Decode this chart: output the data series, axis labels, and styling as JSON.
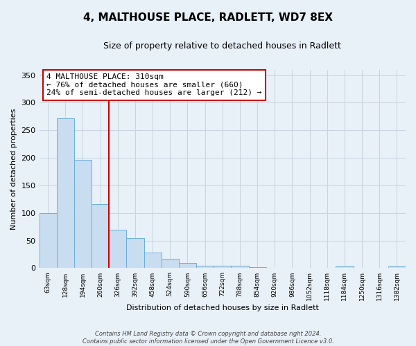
{
  "title": "4, MALTHOUSE PLACE, RADLETT, WD7 8EX",
  "subtitle": "Size of property relative to detached houses in Radlett",
  "xlabel": "Distribution of detached houses by size in Radlett",
  "ylabel": "Number of detached properties",
  "bin_labels": [
    "63sqm",
    "128sqm",
    "194sqm",
    "260sqm",
    "326sqm",
    "392sqm",
    "458sqm",
    "524sqm",
    "590sqm",
    "656sqm",
    "722sqm",
    "788sqm",
    "854sqm",
    "920sqm",
    "986sqm",
    "1052sqm",
    "1118sqm",
    "1184sqm",
    "1250sqm",
    "1316sqm",
    "1382sqm"
  ],
  "bar_heights": [
    100,
    271,
    196,
    116,
    69,
    54,
    28,
    17,
    9,
    4,
    4,
    4,
    2,
    0,
    0,
    0,
    0,
    3,
    1,
    1,
    3
  ],
  "bar_color": "#c9ddf0",
  "bar_edge_color": "#6baed6",
  "vline_x_index": 4,
  "vline_color": "#cc0000",
  "ylim": [
    0,
    360
  ],
  "yticks": [
    0,
    50,
    100,
    150,
    200,
    250,
    300,
    350
  ],
  "annotation_title": "4 MALTHOUSE PLACE: 310sqm",
  "annotation_line1": "← 76% of detached houses are smaller (660)",
  "annotation_line2": "24% of semi-detached houses are larger (212) →",
  "annotation_box_facecolor": "#ffffff",
  "annotation_box_edgecolor": "#cc0000",
  "bg_color": "#e8f0f8",
  "fig_bg_color": "#e8f0f8",
  "grid_color": "#c8d4e0",
  "footer1": "Contains HM Land Registry data © Crown copyright and database right 2024.",
  "footer2": "Contains public sector information licensed under the Open Government Licence v3.0."
}
